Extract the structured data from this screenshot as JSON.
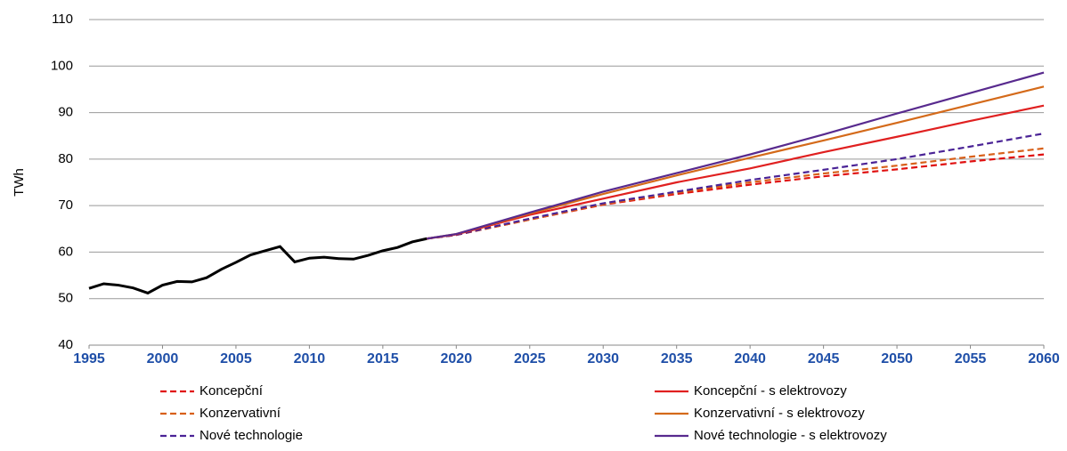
{
  "chart_data": {
    "type": "line",
    "ylabel": "TWh",
    "x": [
      1995,
      1996,
      1997,
      1998,
      1999,
      2000,
      2001,
      2002,
      2003,
      2004,
      2005,
      2006,
      2007,
      2008,
      2009,
      2010,
      2011,
      2012,
      2013,
      2014,
      2015,
      2016,
      2017,
      2018,
      2020,
      2025,
      2030,
      2035,
      2040,
      2045,
      2050,
      2055,
      2060
    ],
    "xlim": [
      1995,
      2060
    ],
    "xticks": [
      1995,
      2000,
      2005,
      2010,
      2015,
      2020,
      2025,
      2030,
      2035,
      2040,
      2045,
      2050,
      2055,
      2060
    ],
    "ylim": [
      40,
      110
    ],
    "yticks": [
      40,
      50,
      60,
      70,
      80,
      90,
      100,
      110
    ],
    "grid": true,
    "series": [
      {
        "color": "#000000",
        "dash": false,
        "values": [
          52.2,
          53.2,
          52.9,
          52.3,
          51.2,
          52.9,
          53.7,
          53.6,
          54.5,
          56.3,
          57.8,
          59.4,
          60.3,
          61.2,
          57.9,
          58.7,
          58.9,
          58.6,
          58.5,
          59.3,
          60.3,
          61.0,
          62.2,
          62.9,
          null,
          null,
          null,
          null,
          null,
          null,
          null,
          null,
          null
        ]
      },
      {
        "name": "Koncepční",
        "color": "#e01010",
        "dash": true,
        "values": [
          null,
          null,
          null,
          null,
          null,
          null,
          null,
          null,
          null,
          null,
          null,
          null,
          null,
          null,
          null,
          null,
          null,
          null,
          null,
          null,
          null,
          null,
          null,
          62.9,
          63.7,
          67.0,
          70.2,
          72.5,
          74.5,
          76.3,
          77.8,
          79.5,
          81.0
        ]
      },
      {
        "name": "Konzervativní",
        "color": "#d8601a",
        "dash": true,
        "values": [
          null,
          null,
          null,
          null,
          null,
          null,
          null,
          null,
          null,
          null,
          null,
          null,
          null,
          null,
          null,
          null,
          null,
          null,
          null,
          null,
          null,
          null,
          null,
          62.9,
          63.7,
          67.0,
          70.3,
          72.8,
          75.0,
          76.9,
          78.6,
          80.5,
          82.3
        ]
      },
      {
        "name": "Nové technologie",
        "color": "#4a2396",
        "dash": true,
        "values": [
          null,
          null,
          null,
          null,
          null,
          null,
          null,
          null,
          null,
          null,
          null,
          null,
          null,
          null,
          null,
          null,
          null,
          null,
          null,
          null,
          null,
          null,
          null,
          62.9,
          63.7,
          67.2,
          70.5,
          73.0,
          75.5,
          77.7,
          80.0,
          82.7,
          85.5
        ]
      },
      {
        "name": "Koncepční - s elektrovozy",
        "color": "#e02020",
        "dash": false,
        "values": [
          null,
          null,
          null,
          null,
          null,
          null,
          null,
          null,
          null,
          null,
          null,
          null,
          null,
          null,
          null,
          null,
          null,
          null,
          null,
          null,
          null,
          null,
          null,
          62.9,
          63.8,
          68.0,
          71.5,
          75.0,
          78.0,
          81.5,
          84.8,
          88.2,
          91.5
        ]
      },
      {
        "name": "Konzervativní - s elektrovozy",
        "color": "#d46a1a",
        "dash": false,
        "values": [
          null,
          null,
          null,
          null,
          null,
          null,
          null,
          null,
          null,
          null,
          null,
          null,
          null,
          null,
          null,
          null,
          null,
          null,
          null,
          null,
          null,
          null,
          null,
          62.9,
          63.9,
          68.3,
          72.5,
          76.5,
          80.3,
          84.0,
          87.8,
          91.7,
          95.6
        ]
      },
      {
        "name": "Nové technologie - s elektrovozy",
        "color": "#582a8e",
        "dash": false,
        "values": [
          null,
          null,
          null,
          null,
          null,
          null,
          null,
          null,
          null,
          null,
          null,
          null,
          null,
          null,
          null,
          null,
          null,
          null,
          null,
          null,
          null,
          null,
          null,
          62.9,
          63.9,
          68.5,
          73.0,
          77.0,
          81.0,
          85.3,
          89.8,
          94.2,
          98.6
        ]
      }
    ]
  }
}
